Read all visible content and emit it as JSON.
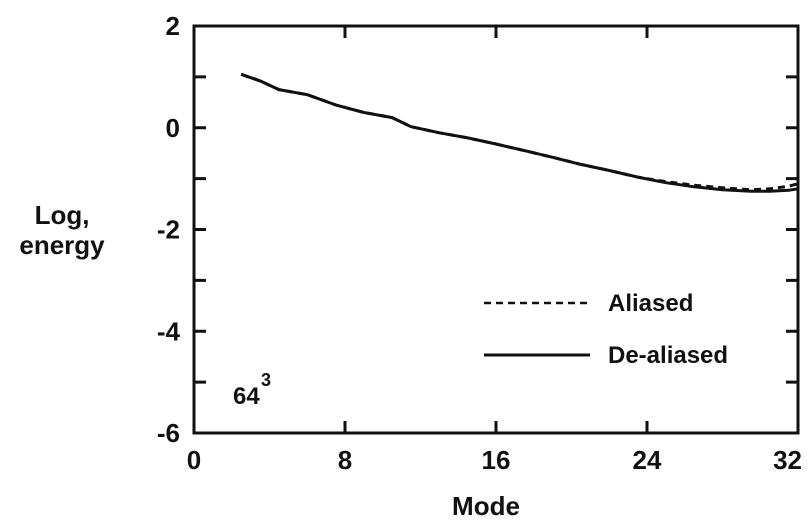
{
  "chart_data": {
    "type": "line",
    "title": "",
    "xlabel": "Mode",
    "ylabel": [
      "Log,",
      "energy"
    ],
    "xlim": [
      0,
      32
    ],
    "ylim": [
      -6,
      2
    ],
    "xticks": [
      0,
      8,
      16,
      24,
      32
    ],
    "xtick_labels": [
      "0",
      "8",
      "16",
      "24",
      "32"
    ],
    "yticks": [
      2,
      0,
      -2,
      -4,
      -6
    ],
    "ytick_labels": [
      "2",
      "0",
      "-2",
      "-4",
      "-6"
    ],
    "minor_yticks": [
      1,
      -1,
      -3,
      -5
    ],
    "grid": false,
    "legend_position": "lower-right",
    "annotation": {
      "base": "64",
      "superscript": "3"
    },
    "series": [
      {
        "name": "Aliased",
        "style": "dashed",
        "x": [
          2.5,
          3.5,
          4.5,
          6,
          7.5,
          9,
          10.5,
          11.5,
          13,
          14.5,
          16,
          17.5,
          19,
          20.5,
          22,
          23.5,
          25,
          26.5,
          28,
          29.5,
          30.5,
          31.5,
          32
        ],
        "y": [
          1.05,
          0.92,
          0.75,
          0.65,
          0.45,
          0.3,
          0.2,
          0.02,
          -0.1,
          -0.2,
          -0.32,
          -0.45,
          -0.58,
          -0.72,
          -0.84,
          -0.97,
          -1.06,
          -1.13,
          -1.18,
          -1.22,
          -1.2,
          -1.15,
          -1.1
        ]
      },
      {
        "name": "De-aliased",
        "style": "solid",
        "x": [
          2.5,
          3.5,
          4.5,
          6,
          7.5,
          9,
          10.5,
          11.5,
          13,
          14.5,
          16,
          17.5,
          19,
          20.5,
          22,
          23.5,
          25,
          26.5,
          28,
          29.5,
          30.5,
          31.5,
          32
        ],
        "y": [
          1.05,
          0.92,
          0.75,
          0.65,
          0.45,
          0.3,
          0.2,
          0.02,
          -0.1,
          -0.2,
          -0.32,
          -0.45,
          -0.58,
          -0.72,
          -0.84,
          -0.97,
          -1.08,
          -1.16,
          -1.22,
          -1.25,
          -1.25,
          -1.23,
          -1.2
        ]
      }
    ]
  }
}
